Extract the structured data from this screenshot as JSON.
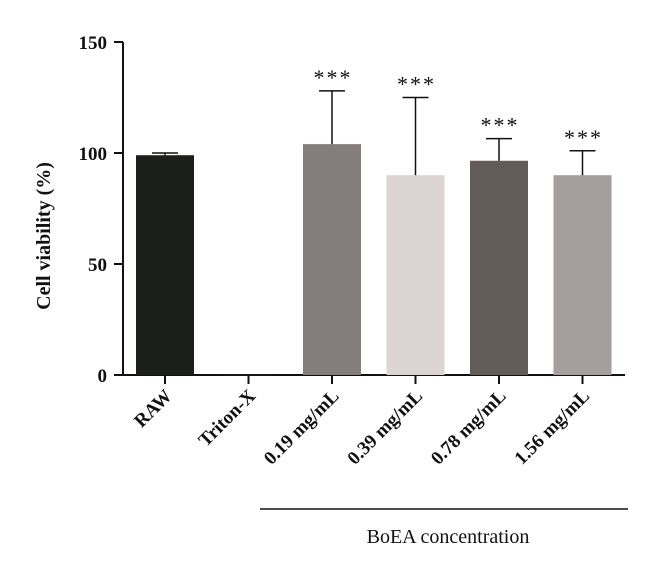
{
  "chart_data": {
    "type": "bar",
    "categories": [
      "RAW",
      "Triton-X",
      "0.19 mg/mL",
      "0.39 mg/mL",
      "0.78 mg/mL",
      "1.56 mg/mL"
    ],
    "values": [
      99,
      0.3,
      104,
      90,
      96.5,
      90
    ],
    "errors": [
      1,
      0,
      24,
      35,
      10,
      11
    ],
    "significance": [
      "",
      "",
      "***",
      "***",
      "***",
      "***"
    ],
    "colors": [
      "#1c1e1a",
      "#1c1e1a",
      "#857c7c",
      "#dcd4d3",
      "#625b58",
      "#a69d9d"
    ],
    "ylabel": "Cell viability (%)",
    "xlabel": "",
    "ylim": [
      0,
      150
    ],
    "yticks": [
      0,
      50,
      100,
      150
    ],
    "group_label": "BoEA concentration",
    "group_categories": [
      "0.19 mg/mL",
      "0.39 mg/mL",
      "0.78 mg/mL",
      "1.56 mg/mL"
    ],
    "grid": false,
    "legend": "none"
  }
}
